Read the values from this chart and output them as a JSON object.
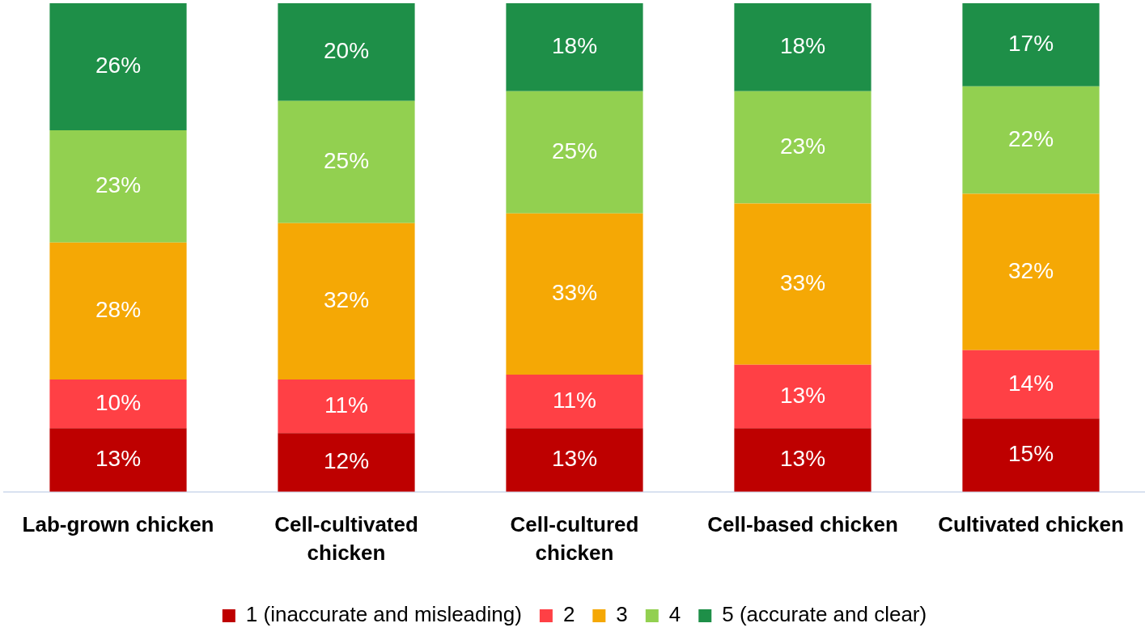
{
  "chart_data": {
    "type": "bar",
    "stacked": true,
    "categories": [
      "Lab-grown chicken",
      "Cell-cultivated chicken",
      "Cell-cultured chicken",
      "Cell-based chicken",
      "Cultivated chicken"
    ],
    "series": [
      {
        "name": "1 (inaccurate and misleading)",
        "color": "#be0000",
        "values": [
          13,
          12,
          13,
          13,
          15
        ],
        "value_labels": [
          "13%",
          "12%",
          "13%",
          "13%",
          "15%"
        ]
      },
      {
        "name": "2",
        "color": "#ff4045",
        "values": [
          10,
          11,
          11,
          13,
          14
        ],
        "value_labels": [
          "10%",
          "11%",
          "11%",
          "13%",
          "14%"
        ]
      },
      {
        "name": "3",
        "color": "#f5a805",
        "values": [
          28,
          32,
          33,
          33,
          32
        ],
        "value_labels": [
          "28%",
          "32%",
          "33%",
          "33%",
          "32%"
        ]
      },
      {
        "name": "4",
        "color": "#92d050",
        "values": [
          23,
          25,
          25,
          23,
          22
        ],
        "value_labels": [
          "23%",
          "25%",
          "25%",
          "23%",
          "22%"
        ]
      },
      {
        "name": "5 (accurate and clear)",
        "color": "#1e8f48",
        "values": [
          26,
          20,
          18,
          18,
          17
        ],
        "value_labels": [
          "26%",
          "20%",
          "18%",
          "18%",
          "17%"
        ]
      }
    ],
    "legend": "bottom",
    "tick_labels": "x"
  }
}
